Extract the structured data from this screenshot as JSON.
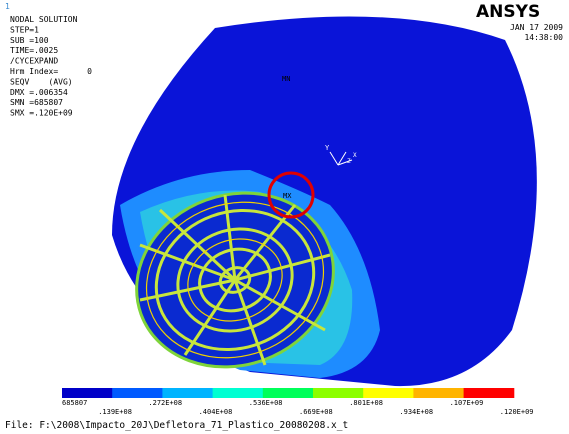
{
  "window_number": "1",
  "header": {
    "lines": [
      "NODAL SOLUTION",
      "STEP=1",
      "SUB =100",
      "TIME=.0025",
      "/CYCEXPAND",
      "Hrm Index=      0",
      "SEQV    (AVG)",
      "DMX =.006354",
      "SMN =685807",
      "SMX =.120E+09"
    ]
  },
  "logo": "ANSYS",
  "date": "JAN 17 2009",
  "time": "14:38:00",
  "labels": {
    "min": "MN",
    "max": "MX"
  },
  "triad": {
    "y": "Y",
    "x": "X",
    "z": "Z"
  },
  "legend": {
    "labels": [
      "685807",
      ".139E+08",
      ".272E+08",
      ".404E+08",
      ".536E+08",
      ".669E+08",
      ".801E+08",
      ".934E+08",
      ".107E+09",
      ".120E+09"
    ],
    "colors": [
      "#0000c8",
      "#005aff",
      "#00b4ff",
      "#00ffd2",
      "#00ff5a",
      "#8cff00",
      "#ffff00",
      "#ffb400",
      "#ff0000"
    ]
  },
  "file": "File: F:\\2008\\Impacto_20J\\Defletora_71_Plastico_20080208.x_t"
}
